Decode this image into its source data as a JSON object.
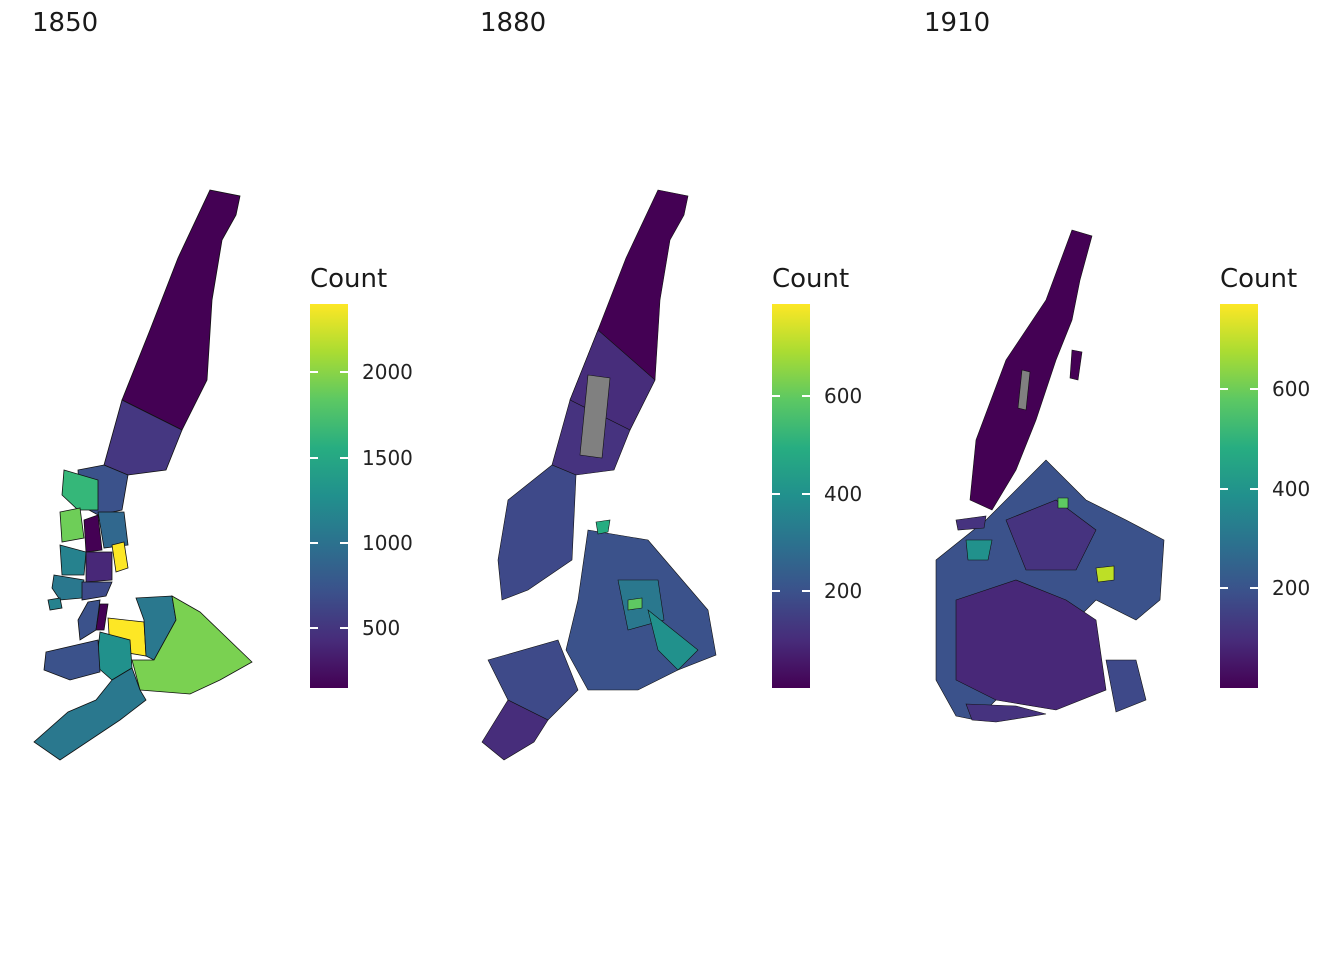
{
  "panels": [
    {
      "title": "1850",
      "legend": {
        "title": "Count",
        "min": 150,
        "max": 2400,
        "ticks": [
          {
            "value": 500,
            "label": "500"
          },
          {
            "value": 1000,
            "label": "1000"
          },
          {
            "value": 1500,
            "label": "1500"
          },
          {
            "value": 2000,
            "label": "2000"
          }
        ]
      }
    },
    {
      "title": "1880",
      "legend": {
        "title": "Count",
        "min": 0,
        "max": 790,
        "ticks": [
          {
            "value": 200,
            "label": "200"
          },
          {
            "value": 400,
            "label": "400"
          },
          {
            "value": 600,
            "label": "600"
          }
        ]
      }
    },
    {
      "title": "1910",
      "legend": {
        "title": "Count",
        "min": 0,
        "max": 770,
        "ticks": [
          {
            "value": 200,
            "label": "200"
          },
          {
            "value": 400,
            "label": "400"
          },
          {
            "value": 600,
            "label": "600"
          }
        ]
      }
    }
  ],
  "colors": {
    "viridis_low": "#440154",
    "viridis_mid": "#21908d",
    "viridis_high": "#fde725",
    "missing": "#808080",
    "border": "#111111"
  }
}
